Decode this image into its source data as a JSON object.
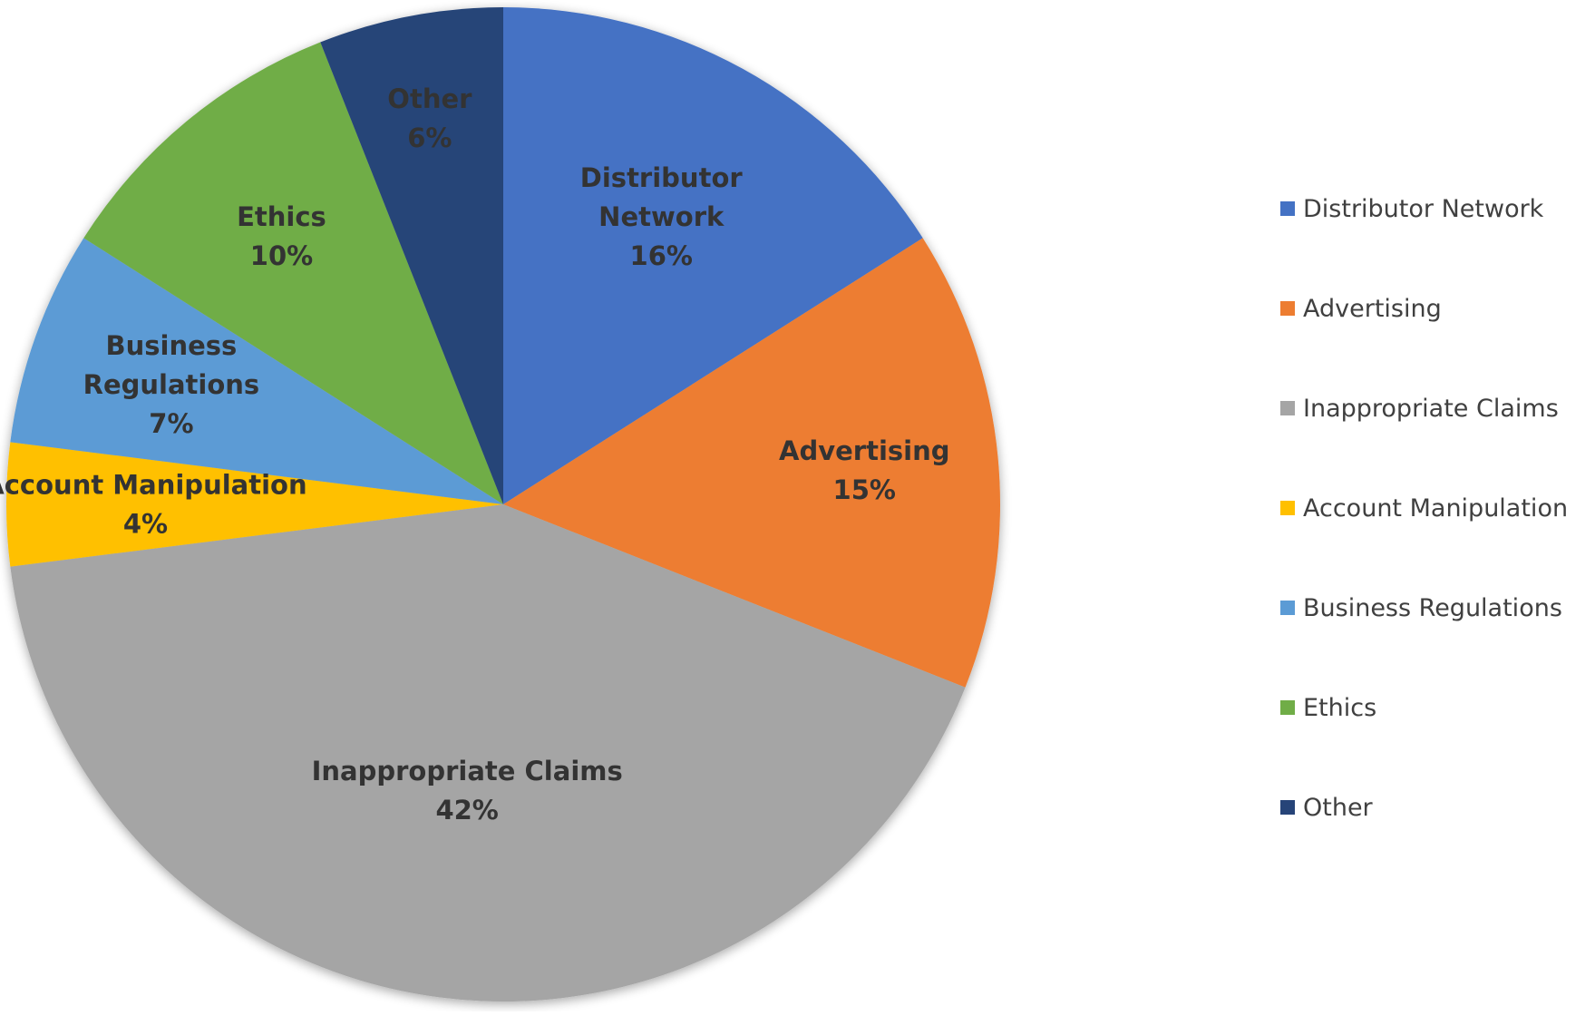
{
  "chart_data": {
    "type": "pie",
    "categories": [
      "Distributor Network",
      "Advertising",
      "Inappropriate Claims",
      "Account Manipulation",
      "Business Regulations",
      "Ethics",
      "Other"
    ],
    "values": [
      16,
      15,
      42,
      4,
      7,
      10,
      6
    ],
    "value_labels": [
      "16%",
      "15%",
      "42%",
      "4%",
      "7%",
      "10%",
      "6%"
    ],
    "slice_labels": [
      [
        "Distributor",
        "Network",
        "16%"
      ],
      [
        "Advertising",
        "15%"
      ],
      [
        "Inappropriate Claims",
        "42%"
      ],
      [
        "Account Manipulation",
        "4%"
      ],
      [
        "Business",
        "Regulations",
        "7%"
      ],
      [
        "Ethics",
        "10%"
      ],
      [
        "Other",
        "6%"
      ]
    ],
    "colors": [
      "#4472C4",
      "#ED7D31",
      "#A5A5A5",
      "#FFC000",
      "#5B9BD5",
      "#70AD47",
      "#264478"
    ],
    "legend_position": "right",
    "start": "top",
    "direction": "clockwise"
  }
}
